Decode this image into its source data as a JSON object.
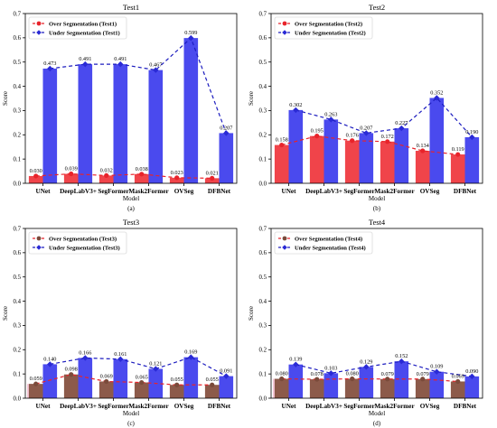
{
  "figure": {
    "colors": {
      "over_bar_default": "#f0444a",
      "under_bar": "#4a4aee",
      "over_line": "#e8232a",
      "under_line": "#1d1dbf",
      "under_marker": "#2a2ad6",
      "over_bar_test3_4": "#8c5a4a",
      "over_marker_test3_4": "#7a4a3a",
      "pink_tint": "#f6c8d8"
    },
    "ylabel_text": "Score",
    "xlabel_text": "Model"
  },
  "chart_data": [
    {
      "type": "bar",
      "title": "Test1",
      "caption": "(a)",
      "xlabel": "Model",
      "ylabel": "Score",
      "ylim": [
        0,
        0.7
      ],
      "yticks": [
        "0.0",
        "0.1",
        "0.2",
        "0.3",
        "0.4",
        "0.5",
        "0.6",
        "0.7"
      ],
      "categories": [
        "UNet",
        "DeepLabV3+",
        "SegFormer",
        "Mask2Former",
        "OVSeg",
        "DFBNet"
      ],
      "legend_position": "top-left",
      "series": [
        {
          "name": "Over Segmentation (Test1)",
          "values": [
            0.03,
            0.039,
            0.032,
            0.038,
            0.023,
            0.021
          ],
          "labels": [
            "0.030",
            "0.039",
            "0.032",
            "0.038",
            "0.023",
            "0.021"
          ]
        },
        {
          "name": "Under Segmentation (Test1)",
          "values": [
            0.473,
            0.491,
            0.491,
            0.467,
            0.599,
            0.207
          ],
          "labels": [
            "0.473",
            "0.491",
            "0.491",
            "0.467",
            "0.599",
            "0.207"
          ]
        }
      ]
    },
    {
      "type": "bar",
      "title": "Test2",
      "caption": "(b)",
      "xlabel": "Model",
      "ylabel": "Score",
      "ylim": [
        0,
        0.7
      ],
      "yticks": [
        "0.0",
        "0.1",
        "0.2",
        "0.3",
        "0.4",
        "0.5",
        "0.6",
        "0.7"
      ],
      "categories": [
        "UNet",
        "DeepLabV3+",
        "SegFormer",
        "Mask2Former",
        "OVSeg",
        "DFBNet"
      ],
      "legend_position": "top-left",
      "series": [
        {
          "name": "Over Segmentation (Test2)",
          "values": [
            0.158,
            0.195,
            0.176,
            0.172,
            0.134,
            0.119
          ],
          "labels": [
            "0.158",
            "0.195",
            "0.176",
            "0.172",
            "0.134",
            "0.119"
          ]
        },
        {
          "name": "Under Segmentation (Test2)",
          "values": [
            0.302,
            0.263,
            0.207,
            0.227,
            0.352,
            0.19
          ],
          "labels": [
            "0.302",
            "0.263",
            "0.207",
            "0.227",
            "0.352",
            "0.190"
          ]
        }
      ]
    },
    {
      "type": "bar",
      "title": "Test3",
      "caption": "(c)",
      "xlabel": "Model",
      "ylabel": "Score",
      "ylim": [
        0,
        0.7
      ],
      "yticks": [
        "0.0",
        "0.1",
        "0.2",
        "0.3",
        "0.4",
        "0.5",
        "0.6",
        "0.7"
      ],
      "categories": [
        "UNet",
        "DeepLabV3+",
        "SegFormer",
        "Mask2Former",
        "OVSeg",
        "DFBNet"
      ],
      "legend_position": "top-left",
      "series": [
        {
          "name": "Over Segmentation (Test3)",
          "values": [
            0.059,
            0.098,
            0.069,
            0.065,
            0.055,
            0.055
          ],
          "labels": [
            "0.059",
            "0.098",
            "0.069",
            "0.065",
            "0.055",
            "0.055"
          ]
        },
        {
          "name": "Under Segmentation (Test3)",
          "values": [
            0.14,
            0.166,
            0.161,
            0.121,
            0.169,
            0.091
          ],
          "labels": [
            "0.140",
            "0.166",
            "0.161",
            "0.121",
            "0.169",
            "0.091"
          ]
        }
      ]
    },
    {
      "type": "bar",
      "title": "Test4",
      "caption": "(d)",
      "xlabel": "Model",
      "ylabel": "Score",
      "ylim": [
        0,
        0.7
      ],
      "yticks": [
        "0.0",
        "0.1",
        "0.2",
        "0.3",
        "0.4",
        "0.5",
        "0.6",
        "0.7"
      ],
      "categories": [
        "UNet",
        "DeepLabV3+",
        "SegFormer",
        "Mask2Former",
        "OVSeg",
        "DFBNet"
      ],
      "legend_position": "top-left",
      "series": [
        {
          "name": "Over Segmentation (Test4)",
          "values": [
            0.08,
            0.078,
            0.08,
            0.079,
            0.079,
            0.069
          ],
          "labels": [
            "0.080",
            "0.078",
            "0.080",
            "0.079",
            "0.079",
            "0.069"
          ]
        },
        {
          "name": "Under Segmentation (Test4)",
          "values": [
            0.139,
            0.103,
            0.129,
            0.152,
            0.109,
            0.09
          ],
          "labels": [
            "0.139",
            "0.103",
            "0.129",
            "0.152",
            "0.109",
            "0.090"
          ]
        }
      ]
    }
  ]
}
